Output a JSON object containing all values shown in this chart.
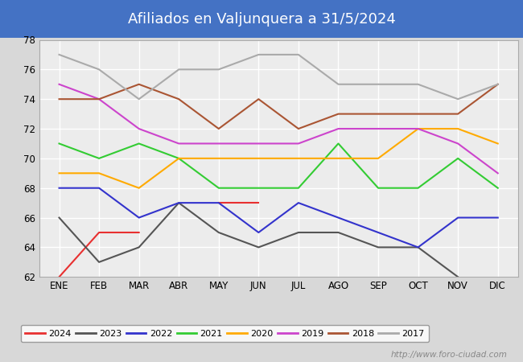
{
  "title": "Afiliados en Valjunquera a 31/5/2024",
  "title_bg_color": "#4472c4",
  "title_text_color": "white",
  "ylim": [
    62,
    78
  ],
  "yticks": [
    62,
    64,
    66,
    68,
    70,
    72,
    74,
    76,
    78
  ],
  "months": [
    "ENE",
    "FEB",
    "MAR",
    "ABR",
    "MAY",
    "JUN",
    "JUL",
    "AGO",
    "SEP",
    "OCT",
    "NOV",
    "DIC"
  ],
  "series": {
    "2024": {
      "color": "#e83030",
      "data": [
        62,
        65,
        65,
        null,
        67,
        67,
        null,
        null,
        null,
        null,
        null,
        null
      ]
    },
    "2023": {
      "color": "#555555",
      "data": [
        66,
        63,
        64,
        67,
        65,
        64,
        65,
        65,
        64,
        64,
        62,
        null
      ]
    },
    "2022": {
      "color": "#3333cc",
      "data": [
        68,
        68,
        66,
        67,
        67,
        65,
        67,
        66,
        65,
        64,
        66,
        66
      ]
    },
    "2021": {
      "color": "#33cc33",
      "data": [
        71,
        70,
        71,
        70,
        68,
        68,
        68,
        71,
        68,
        68,
        70,
        68
      ]
    },
    "2020": {
      "color": "#ffaa00",
      "data": [
        69,
        69,
        68,
        70,
        70,
        70,
        70,
        70,
        70,
        72,
        72,
        71
      ]
    },
    "2019": {
      "color": "#cc44cc",
      "data": [
        75,
        74,
        72,
        71,
        71,
        71,
        71,
        72,
        72,
        72,
        71,
        69
      ]
    },
    "2018": {
      "color": "#aa5533",
      "data": [
        74,
        74,
        75,
        74,
        72,
        74,
        72,
        73,
        73,
        73,
        73,
        75
      ]
    },
    "2017": {
      "color": "#aaaaaa",
      "data": [
        77,
        76,
        74,
        76,
        76,
        77,
        77,
        75,
        75,
        75,
        74,
        75
      ]
    }
  },
  "bg_color": "#d8d8d8",
  "plot_bg_color": "#ececec",
  "grid_color": "white",
  "footer_text": "http://www.foro-ciudad.com"
}
